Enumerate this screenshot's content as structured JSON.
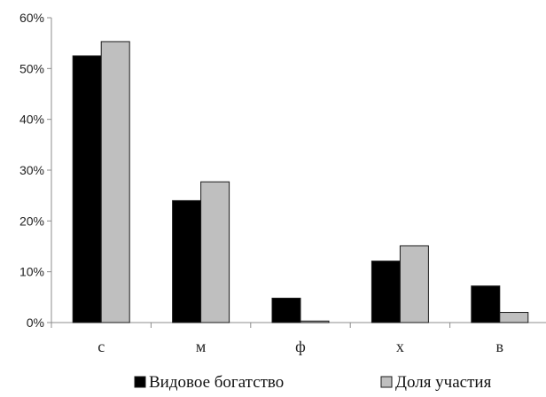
{
  "chart_data": {
    "type": "bar",
    "categories": [
      "с",
      "м",
      "ф",
      "х",
      "в"
    ],
    "series": [
      {
        "name": "Видовое богатство",
        "values": [
          52.5,
          24.0,
          4.8,
          12.1,
          7.2
        ],
        "color": "#000000"
      },
      {
        "name": "Доля участия",
        "values": [
          55.3,
          27.7,
          0.3,
          15.1,
          2.0
        ],
        "color": "#bfbfbf"
      }
    ],
    "yticks": [
      "0%",
      "10%",
      "20%",
      "30%",
      "40%",
      "50%",
      "60%"
    ],
    "ylim": [
      0,
      60
    ],
    "unit": "%",
    "title": "",
    "xlabel": "",
    "ylabel": "",
    "grid": false,
    "legend_position": "bottom"
  }
}
